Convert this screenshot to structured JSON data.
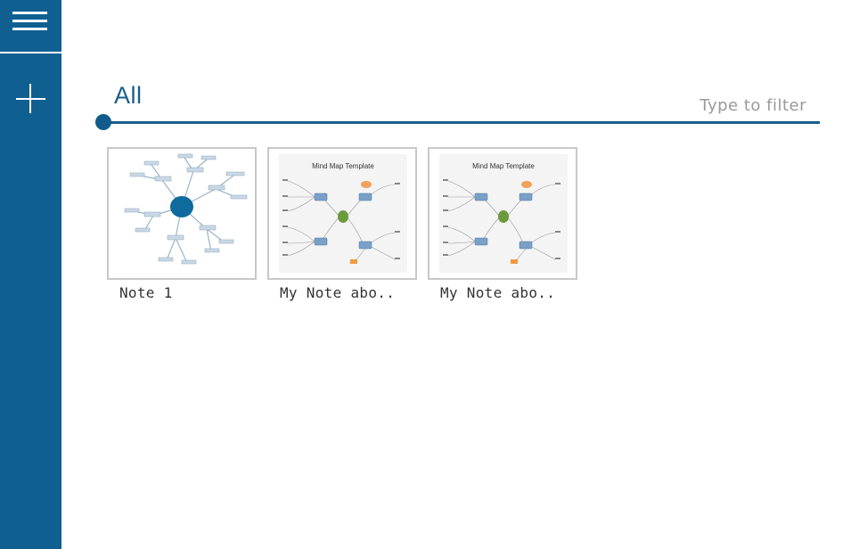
{
  "sidebar": {
    "menu_icon": "hamburger-menu-icon",
    "add_icon": "plus-icon",
    "color": "#0f6090"
  },
  "header": {
    "title": "All"
  },
  "filter": {
    "placeholder": "Type to filter",
    "value": ""
  },
  "notes": [
    {
      "label": "Note 1",
      "thumbnail": "radial-mind-map"
    },
    {
      "label": "My Note abo..",
      "thumbnail": "mind-map-template",
      "thumbnail_title": "Mind Map Template"
    },
    {
      "label": "My Note abo..",
      "thumbnail": "mind-map-template",
      "thumbnail_title": "Mind Map Template"
    }
  ],
  "colors": {
    "accent": "#1a5e8a",
    "card_border": "#c8c8c8",
    "filter_placeholder": "#9a9a9a"
  }
}
